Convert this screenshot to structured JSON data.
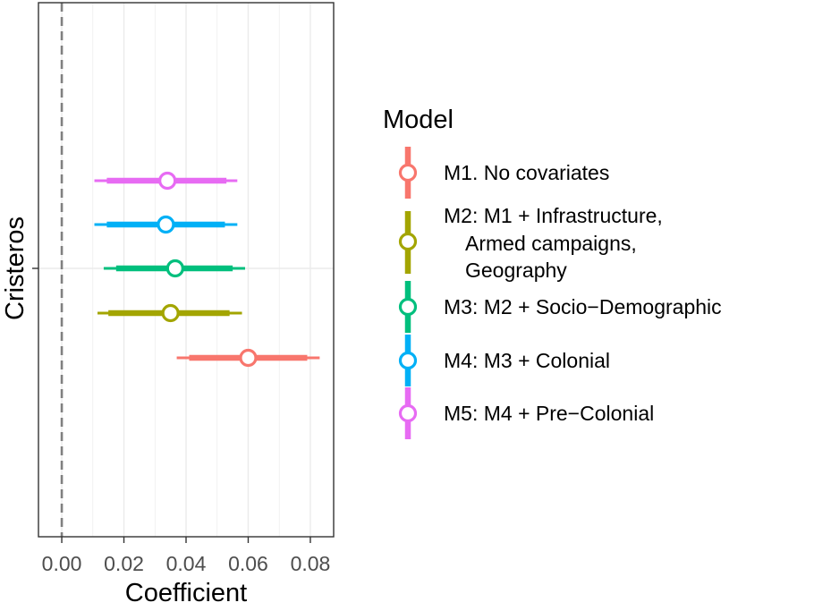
{
  "chart_data": {
    "type": "scatter",
    "title": "",
    "xlabel": "Coefficient",
    "ylabel": "Cristeros",
    "xlim": [
      -0.0075,
      0.0875
    ],
    "x_ticks": [
      "0.00",
      "0.02",
      "0.04",
      "0.06",
      "0.08"
    ],
    "x_tick_values": [
      0,
      0.02,
      0.04,
      0.06,
      0.08
    ],
    "y_categories": [
      "Cristeros"
    ],
    "grid": true,
    "reference_line": {
      "x": 0,
      "style": "dashed"
    },
    "legend": {
      "title": "Model",
      "placement": "right"
    },
    "series": [
      {
        "name": "M1. No covariates",
        "color": "#F8766D",
        "estimate": 0.06,
        "ci90": [
          0.041,
          0.079
        ],
        "ci95": [
          0.037,
          0.083
        ]
      },
      {
        "name": "M2: M1 + Infrastructure, Armed campaigns, Geography",
        "name_lines": [
          "M2: M1 + Infrastructure,",
          "Armed campaigns,",
          "Geography"
        ],
        "color": "#A3A500",
        "estimate": 0.035,
        "ci90": [
          0.015,
          0.054
        ],
        "ci95": [
          0.0115,
          0.058
        ]
      },
      {
        "name": "M3: M2 + Socio−Demographic",
        "color": "#00BF7D",
        "estimate": 0.0365,
        "ci90": [
          0.0175,
          0.055
        ],
        "ci95": [
          0.0135,
          0.059
        ]
      },
      {
        "name": "M4: M3 + Colonial",
        "color": "#00B0F6",
        "estimate": 0.0335,
        "ci90": [
          0.0145,
          0.0525
        ],
        "ci95": [
          0.0105,
          0.0565
        ]
      },
      {
        "name": "M5: M4 + Pre−Colonial",
        "color": "#E76BF3",
        "estimate": 0.034,
        "ci90": [
          0.0145,
          0.053
        ],
        "ci95": [
          0.0105,
          0.0565
        ]
      }
    ]
  }
}
